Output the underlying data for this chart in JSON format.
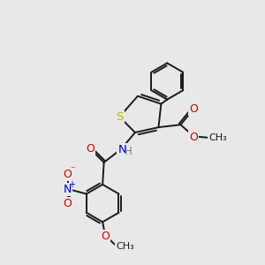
{
  "bg_color": "#e8e8e8",
  "bond_color": "#1a1a1a",
  "bond_lw": 1.4,
  "S_color": "#b8b800",
  "N_color": "#0000cc",
  "O_color": "#cc0000",
  "H_color": "#4a8a8a",
  "C_color": "#1a1a1a",
  "figsize": [
    3.0,
    3.0
  ],
  "dpi": 100,
  "xlim": [
    0,
    10
  ],
  "ylim": [
    0,
    10
  ]
}
